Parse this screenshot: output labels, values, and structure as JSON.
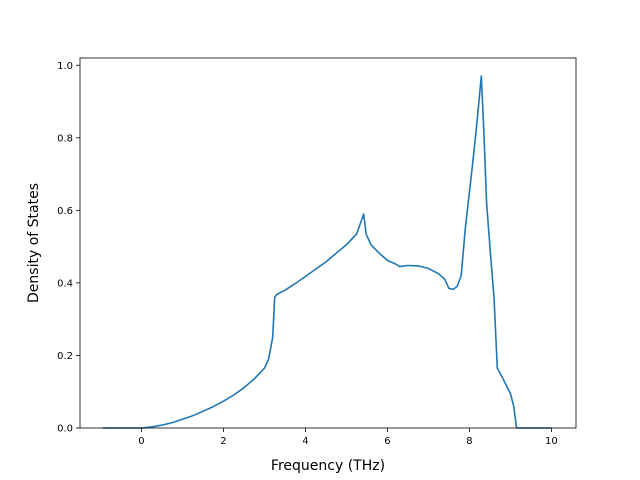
{
  "chart_data": {
    "type": "line",
    "title": "",
    "xlabel": "Frequency (THz)",
    "ylabel": "Density of States",
    "xlim": [
      -1.5,
      10.6
    ],
    "ylim": [
      0,
      1.02
    ],
    "xticks": [
      0,
      2,
      4,
      6,
      8,
      10
    ],
    "xtick_labels": [
      "0",
      "2",
      "4",
      "6",
      "8",
      "10"
    ],
    "yticks": [
      0.0,
      0.2,
      0.4,
      0.6,
      0.8,
      1.0
    ],
    "ytick_labels": [
      "0.0",
      "0.2",
      "0.4",
      "0.6",
      "0.8",
      "1.0"
    ],
    "grid": false,
    "legend": "none",
    "line_color": "#1f77b4",
    "series": [
      {
        "points": [
          [
            -0.95,
            0.0
          ],
          [
            0.0,
            0.0
          ],
          [
            0.25,
            0.003
          ],
          [
            0.5,
            0.008
          ],
          [
            0.75,
            0.015
          ],
          [
            1.0,
            0.024
          ],
          [
            1.25,
            0.034
          ],
          [
            1.5,
            0.046
          ],
          [
            1.75,
            0.059
          ],
          [
            2.0,
            0.074
          ],
          [
            2.25,
            0.091
          ],
          [
            2.5,
            0.111
          ],
          [
            2.75,
            0.135
          ],
          [
            3.0,
            0.165
          ],
          [
            3.1,
            0.19
          ],
          [
            3.2,
            0.25
          ],
          [
            3.25,
            0.36
          ],
          [
            3.3,
            0.368
          ],
          [
            3.5,
            0.38
          ],
          [
            3.75,
            0.398
          ],
          [
            4.0,
            0.418
          ],
          [
            4.25,
            0.438
          ],
          [
            4.5,
            0.458
          ],
          [
            4.75,
            0.482
          ],
          [
            5.0,
            0.505
          ],
          [
            5.25,
            0.535
          ],
          [
            5.42,
            0.59
          ],
          [
            5.48,
            0.535
          ],
          [
            5.6,
            0.505
          ],
          [
            5.8,
            0.482
          ],
          [
            6.0,
            0.462
          ],
          [
            6.2,
            0.452
          ],
          [
            6.3,
            0.445
          ],
          [
            6.5,
            0.448
          ],
          [
            6.75,
            0.447
          ],
          [
            7.0,
            0.44
          ],
          [
            7.25,
            0.425
          ],
          [
            7.4,
            0.41
          ],
          [
            7.5,
            0.385
          ],
          [
            7.6,
            0.382
          ],
          [
            7.7,
            0.39
          ],
          [
            7.8,
            0.42
          ],
          [
            7.9,
            0.55
          ],
          [
            8.0,
            0.65
          ],
          [
            8.1,
            0.75
          ],
          [
            8.2,
            0.86
          ],
          [
            8.29,
            0.97
          ],
          [
            8.35,
            0.82
          ],
          [
            8.42,
            0.62
          ],
          [
            8.5,
            0.5
          ],
          [
            8.6,
            0.36
          ],
          [
            8.68,
            0.165
          ],
          [
            8.8,
            0.14
          ],
          [
            9.0,
            0.095
          ],
          [
            9.08,
            0.06
          ],
          [
            9.15,
            0.0
          ],
          [
            10.0,
            0.0
          ]
        ]
      }
    ]
  }
}
